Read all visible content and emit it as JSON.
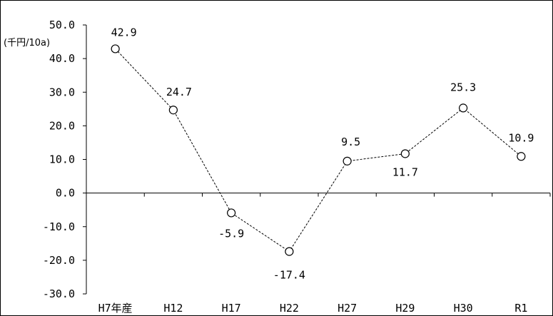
{
  "chart_data": {
    "type": "line",
    "categories": [
      "H7年産",
      "H12",
      "H17",
      "H22",
      "H27",
      "H29",
      "H30",
      "R1"
    ],
    "values": [
      42.9,
      24.7,
      -5.9,
      -17.4,
      9.5,
      11.7,
      25.3,
      10.9
    ],
    "data_labels": [
      "42.9",
      "24.7",
      "-5.9",
      "-17.4",
      "9.5",
      "11.7",
      "25.3",
      "10.9"
    ],
    "y_ticks": [
      "50.0",
      "40.0",
      "30.0",
      "20.0",
      "10.0",
      "0.0",
      "-10.0",
      "-20.0",
      "-30.0"
    ],
    "ylim": [
      -30,
      50
    ],
    "y_unit": "(千円/10a)",
    "title": "",
    "xlabel": "",
    "ylabel": "",
    "grid": false,
    "line_style": "dashed",
    "marker": "hollow-circle",
    "line_color": "#000000"
  }
}
